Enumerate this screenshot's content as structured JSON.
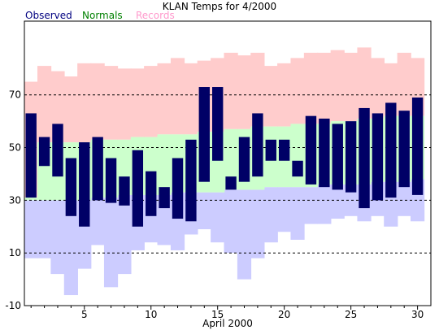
{
  "chart_data": {
    "type": "bar",
    "title": "KLAN Temps for 4/2000",
    "xlabel": "April 2000",
    "ylabel": "",
    "x_range": [
      0.5,
      31
    ],
    "ylim": [
      -10,
      98
    ],
    "y_ticks": [
      -10,
      10,
      30,
      50,
      70
    ],
    "x_ticks": [
      5,
      10,
      15,
      20,
      25,
      30
    ],
    "legend_placement": "top-left",
    "colors": {
      "Observed": "#000066",
      "Normals": "#ccffcc",
      "Records": "#ffcccc",
      "Record low band": "#ccccff",
      "Observed label": "#000080",
      "Normals label": "#008000",
      "Records label": "#ff99cc",
      "grid": "#000000"
    },
    "series": [
      {
        "name": "Records",
        "days": [
          1,
          2,
          3,
          4,
          5,
          6,
          7,
          8,
          9,
          10,
          11,
          12,
          13,
          14,
          15,
          16,
          17,
          18,
          19,
          20,
          21,
          22,
          23,
          24,
          25,
          26,
          27,
          28,
          29,
          30
        ],
        "high": [
          75,
          81,
          79,
          77,
          82,
          82,
          81,
          80,
          80,
          81,
          82,
          84,
          82,
          83,
          84,
          86,
          85,
          86,
          81,
          82,
          84,
          86,
          86,
          87,
          86,
          88,
          84,
          82,
          86,
          84
        ],
        "low": [
          8,
          8,
          2,
          -6,
          4,
          13,
          -3,
          2,
          11,
          14,
          13,
          11,
          17,
          19,
          14,
          10,
          0,
          8,
          14,
          18,
          15,
          21,
          21,
          23,
          24,
          22,
          24,
          20,
          24,
          22
        ]
      },
      {
        "name": "Normals",
        "days": [
          1,
          2,
          3,
          4,
          5,
          6,
          7,
          8,
          9,
          10,
          11,
          12,
          13,
          14,
          15,
          16,
          17,
          18,
          19,
          20,
          21,
          22,
          23,
          24,
          25,
          26,
          27,
          28,
          29,
          30
        ],
        "high": [
          31,
          52,
          52,
          52,
          52,
          53,
          53,
          53,
          54,
          54,
          55,
          55,
          55,
          56,
          56,
          57,
          57,
          58,
          58,
          58,
          59,
          59,
          59,
          60,
          60,
          61,
          61,
          62,
          62,
          62
        ],
        "low": [
          30,
          30,
          30,
          30,
          30,
          31,
          31,
          32,
          32,
          32,
          32,
          33,
          33,
          33,
          33,
          34,
          34,
          34,
          35,
          35,
          35,
          35,
          36,
          36,
          36,
          36,
          37,
          37,
          37,
          38
        ]
      },
      {
        "name": "Observed",
        "days": [
          1,
          2,
          3,
          4,
          5,
          6,
          7,
          8,
          9,
          10,
          11,
          12,
          13,
          14,
          15,
          16,
          17,
          18,
          19,
          20,
          21,
          22,
          23,
          24,
          25,
          26,
          27,
          28,
          29,
          30
        ],
        "high": [
          63,
          54,
          59,
          46,
          52,
          54,
          46,
          39,
          49,
          41,
          35,
          46,
          53,
          73,
          73,
          39,
          54,
          63,
          53,
          53,
          45,
          62,
          61,
          59,
          60,
          65,
          63,
          67,
          64,
          69
        ],
        "low": [
          31,
          43,
          39,
          24,
          20,
          30,
          29,
          28,
          20,
          24,
          27,
          23,
          22,
          37,
          45,
          34,
          37,
          39,
          45,
          45,
          39,
          36,
          35,
          34,
          33,
          27,
          30,
          31,
          35,
          32
        ]
      }
    ]
  }
}
